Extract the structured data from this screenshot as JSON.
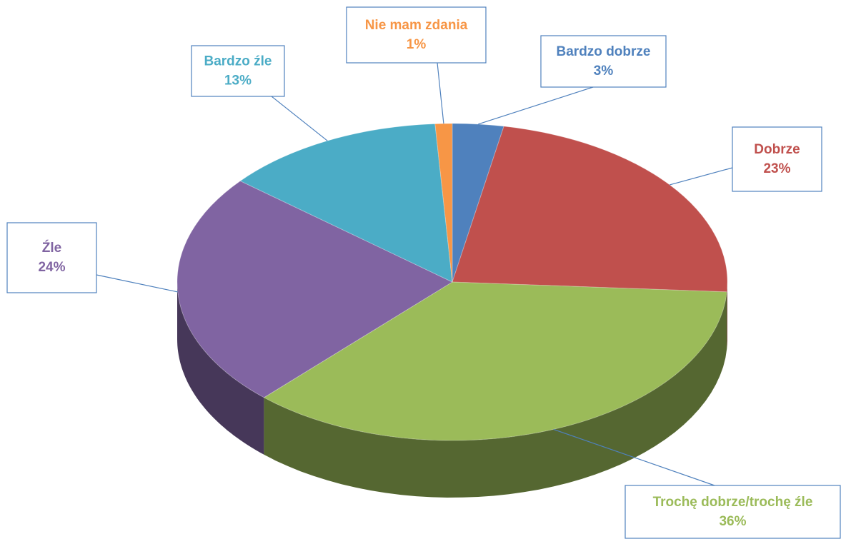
{
  "chart_data": {
    "type": "pie",
    "categories": [
      "Bardzo dobrze",
      "Dobrze",
      "Trochę dobrze/trochę źle",
      "Źle",
      "Bardzo źle",
      "Nie mam zdania"
    ],
    "values": [
      3,
      23,
      36,
      24,
      13,
      1
    ],
    "value_labels": [
      "3%",
      "23%",
      "36%",
      "24%",
      "13%",
      "1%"
    ],
    "colors": [
      "#4f81bd",
      "#c0504d",
      "#9bbb59",
      "#8064a2",
      "#4bacc6",
      "#f79646"
    ]
  }
}
